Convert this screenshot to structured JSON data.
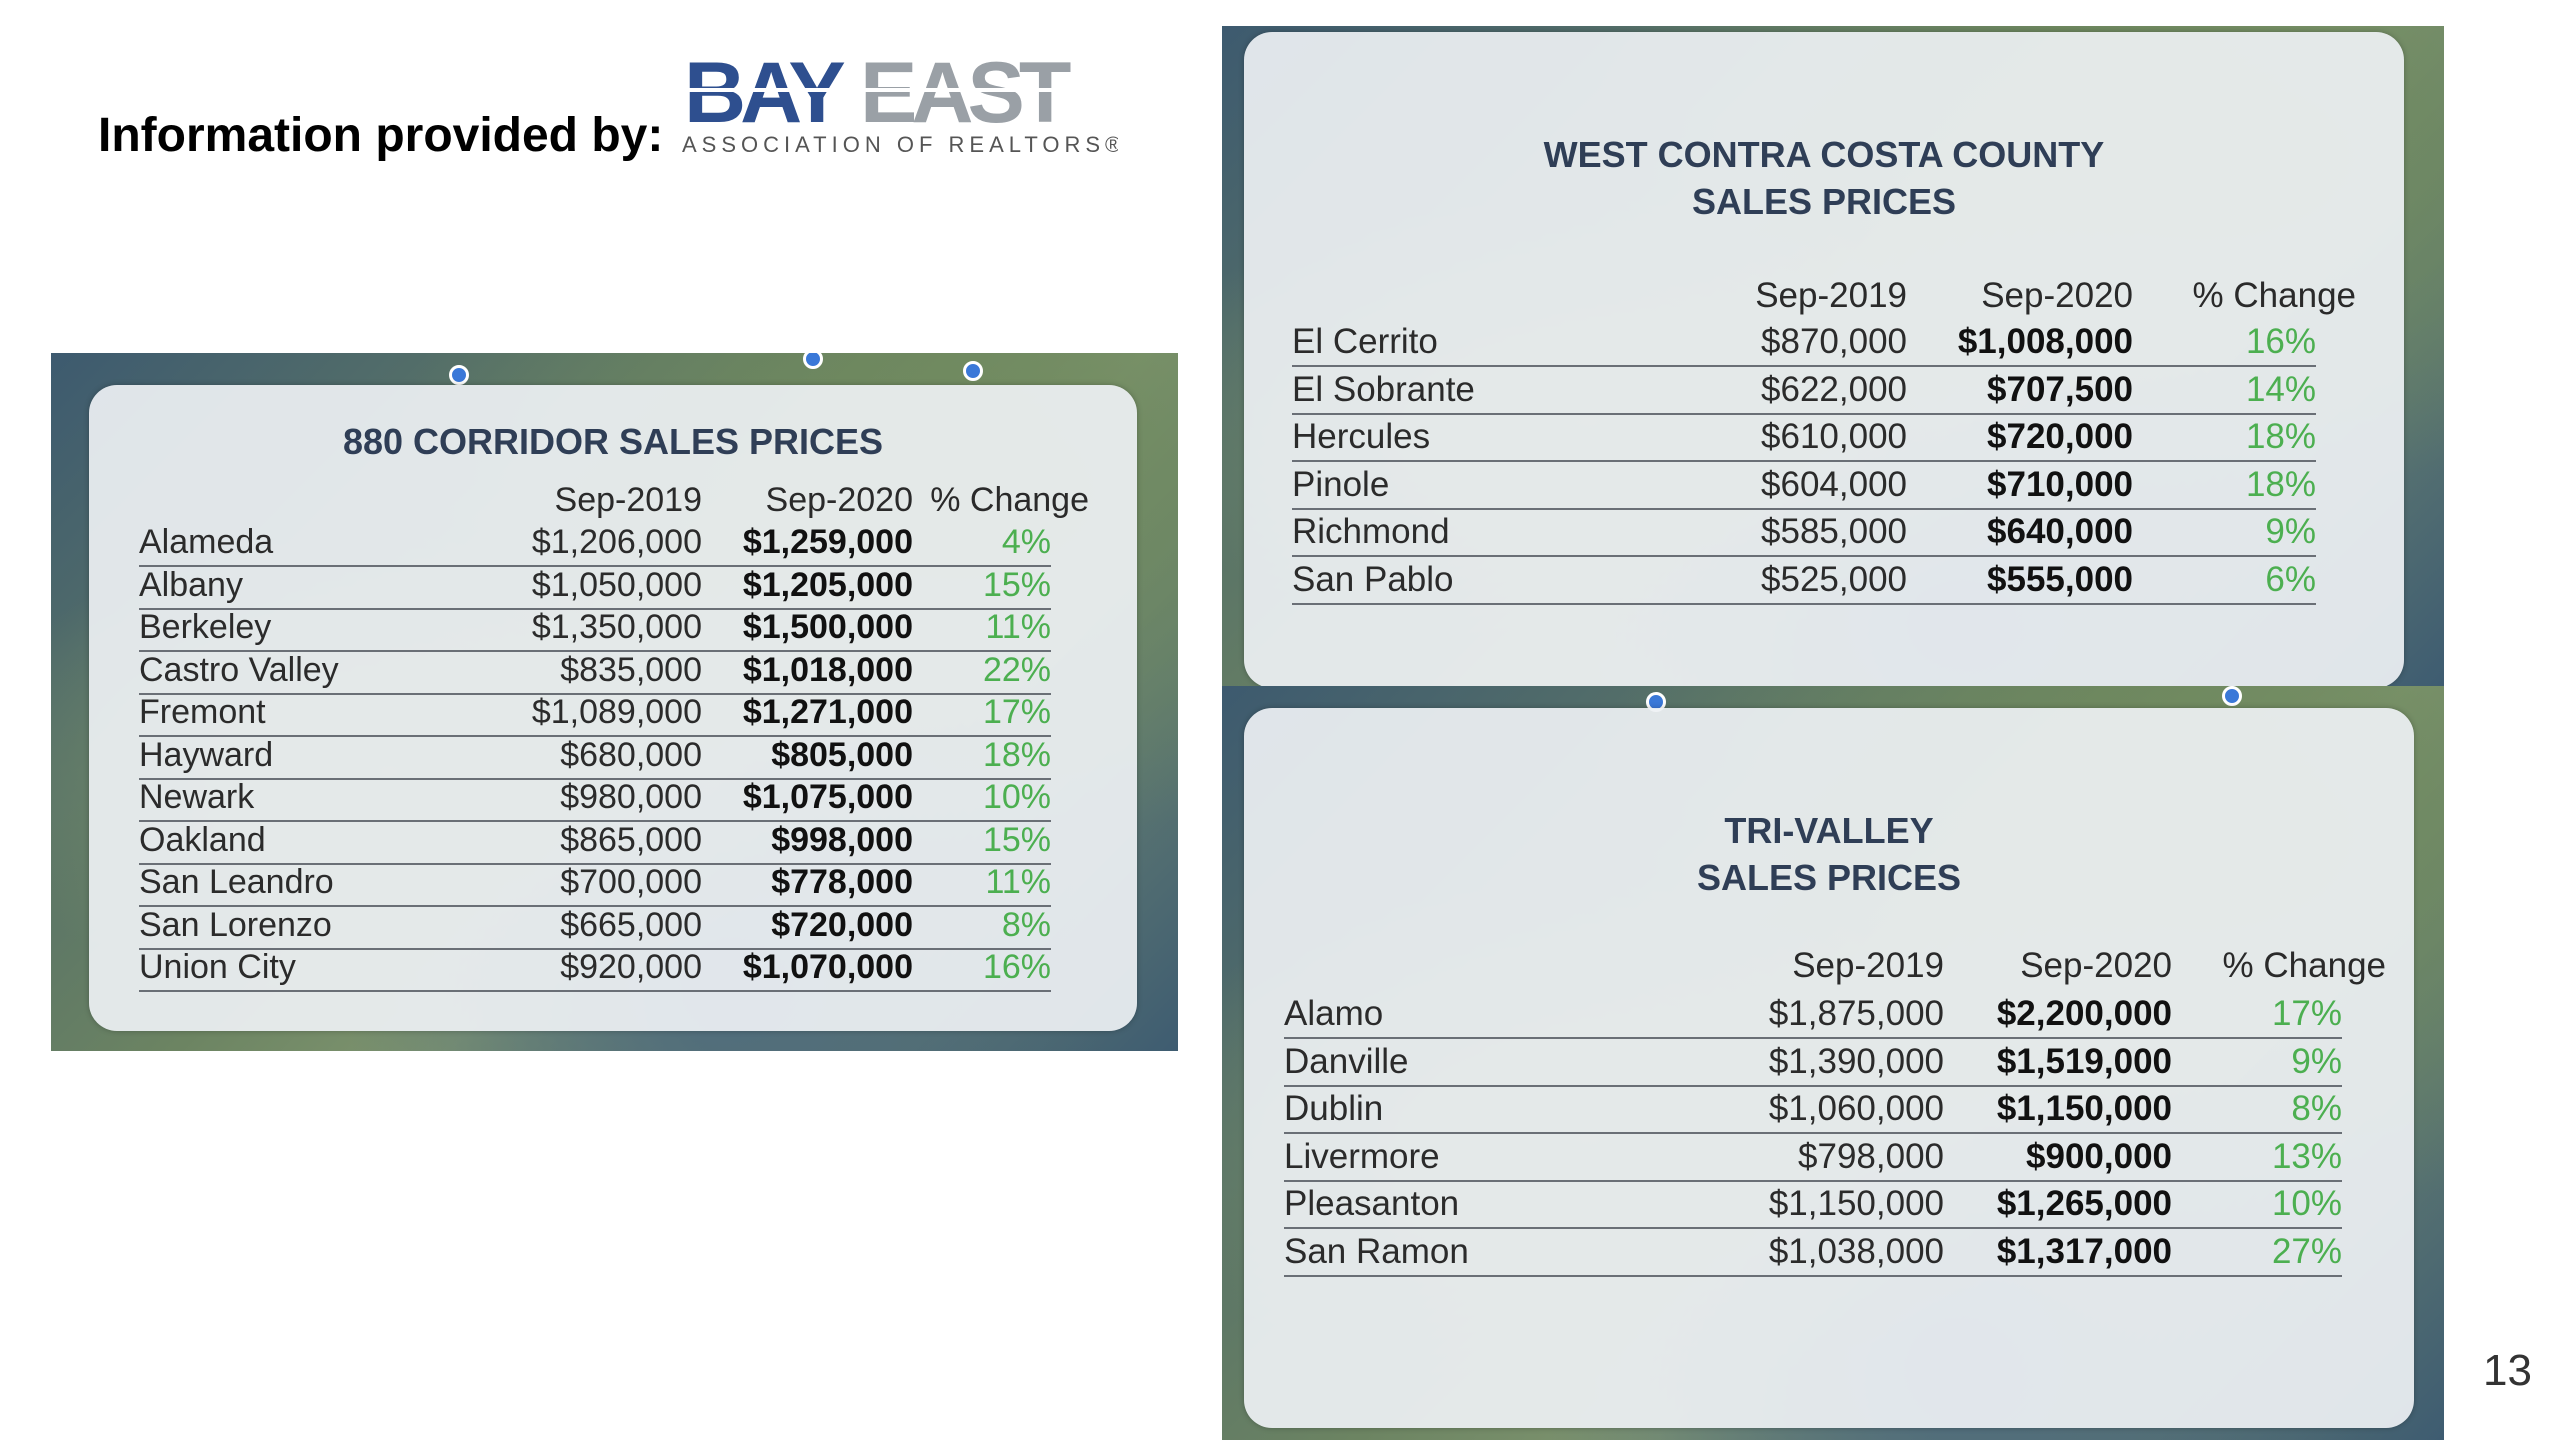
{
  "header": {
    "info_label": "Information provided by:",
    "logo_main": "BAYEAST",
    "logo_sub": "ASSOCIATION OF REALTORS"
  },
  "page_number": "13",
  "corridor": {
    "title": "880 CORRIDOR SALES PRICES",
    "headers": [
      "Sep-2019",
      "Sep-2020",
      "% Change"
    ],
    "rows": [
      [
        "Alameda",
        "$1,206,000",
        "$1,259,000",
        "4%"
      ],
      [
        "Albany",
        "$1,050,000",
        "$1,205,000",
        "15%"
      ],
      [
        "Berkeley",
        "$1,350,000",
        "$1,500,000",
        "11%"
      ],
      [
        "Castro Valley",
        "$835,000",
        "$1,018,000",
        "22%"
      ],
      [
        "Fremont",
        "$1,089,000",
        "$1,271,000",
        "17%"
      ],
      [
        "Hayward",
        "$680,000",
        "$805,000",
        "18%"
      ],
      [
        "Newark",
        "$980,000",
        "$1,075,000",
        "10%"
      ],
      [
        "Oakland",
        "$865,000",
        "$998,000",
        "15%"
      ],
      [
        "San Leandro",
        "$700,000",
        "$778,000",
        "11%"
      ],
      [
        "San Lorenzo",
        "$665,000",
        "$720,000",
        "8%"
      ],
      [
        "Union City",
        "$920,000",
        "$1,070,000",
        "16%"
      ]
    ]
  },
  "west_contra": {
    "title_line1": "WEST CONTRA COSTA COUNTY",
    "title_line2": "SALES PRICES",
    "headers": [
      "Sep-2019",
      "Sep-2020",
      "% Change"
    ],
    "rows": [
      [
        "El Cerrito",
        "$870,000",
        "$1,008,000",
        "16%"
      ],
      [
        "El Sobrante",
        "$622,000",
        "$707,500",
        "14%"
      ],
      [
        "Hercules",
        "$610,000",
        "$720,000",
        "18%"
      ],
      [
        "Pinole",
        "$604,000",
        "$710,000",
        "18%"
      ],
      [
        "Richmond",
        "$585,000",
        "$640,000",
        "9%"
      ],
      [
        "San Pablo",
        "$525,000",
        "$555,000",
        "6%"
      ]
    ]
  },
  "tri_valley": {
    "title_line1": "TRI-VALLEY",
    "title_line2": "SALES PRICES",
    "headers": [
      "Sep-2019",
      "Sep-2020",
      "% Change"
    ],
    "rows": [
      [
        "Alamo",
        "$1,875,000",
        "$2,200,000",
        "17%"
      ],
      [
        "Danville",
        "$1,390,000",
        "$1,519,000",
        "9%"
      ],
      [
        "Dublin",
        "$1,060,000",
        "$1,150,000",
        "8%"
      ],
      [
        "Livermore",
        "$798,000",
        "$900,000",
        "13%"
      ],
      [
        "Pleasanton",
        "$1,150,000",
        "$1,265,000",
        "10%"
      ],
      [
        "San Ramon",
        "$1,038,000",
        "$1,317,000",
        "27%"
      ]
    ]
  }
}
